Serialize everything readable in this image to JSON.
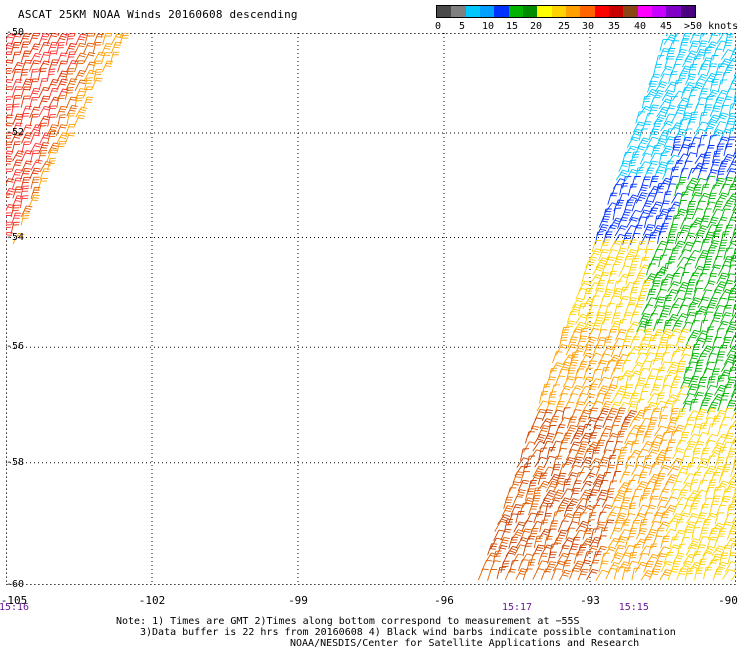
{
  "title": "ASCAT 25KM NOAA Winds 20160608 descending",
  "scale": {
    "colors": [
      "#4a4a4a",
      "#808080",
      "#00c8ff",
      "#00a0ff",
      "#0032ff",
      "#00b400",
      "#008c00",
      "#ffff00",
      "#ffd200",
      "#ffa000",
      "#ff6400",
      "#ff0000",
      "#c80000",
      "#8b4513",
      "#ff00ff",
      "#c800ff",
      "#8000c8",
      "#4b0082"
    ],
    "labels": [
      "0",
      "5",
      "10",
      "15",
      "20",
      "25",
      "30",
      "35",
      "40",
      "45",
      ">50 knots"
    ]
  },
  "latitudes": [
    "-50",
    "-52",
    "-54",
    "-56",
    "-58",
    "-60"
  ],
  "longitudes": [
    "-105",
    "-102",
    "-99",
    "-96",
    "-93",
    "-90"
  ],
  "times": [
    {
      "label": "15:16",
      "lon": -105
    },
    {
      "label": "15:17",
      "lon": -94.5
    },
    {
      "label": "15:15",
      "lon": -92.1
    }
  ],
  "footer": {
    "line1": "Note: 1) Times are GMT 2)Times along bottom correspond to measurement at −55S",
    "line2": "3)Data buffer is 22 hrs from 20160608 4) Black wind barbs indicate possible contamination",
    "line3": "NOAA/NESDIS/Center for Satellite Applications and Research"
  },
  "swaths": [
    {
      "name": "west-swath",
      "colors": [
        "#e03000",
        "#ff3030",
        "#e06000",
        "#ffa000"
      ]
    },
    {
      "name": "east-swath",
      "colors": [
        "#00c8ff",
        "#0032ff",
        "#00b400",
        "#ffd200",
        "#ffa000",
        "#e06000",
        "#c84000"
      ]
    }
  ]
}
